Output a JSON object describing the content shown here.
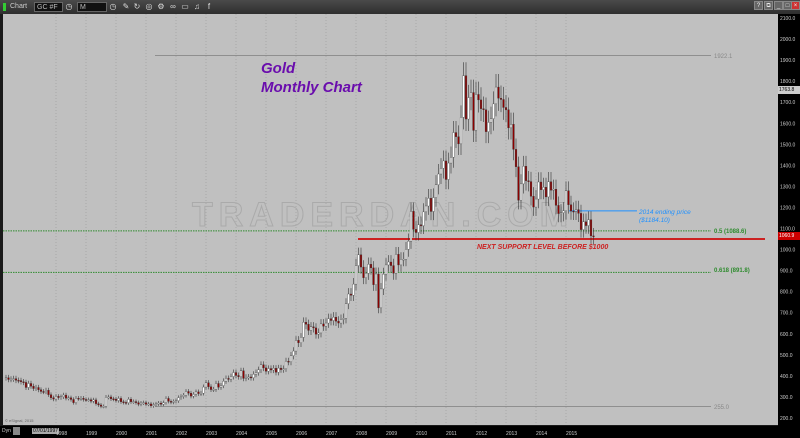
{
  "window": {
    "title": "Chart",
    "symbol": "GC #F",
    "interval": "M",
    "toolbar_icons": [
      "clock-icon",
      "pencil-icon",
      "refresh-icon",
      "target-icon",
      "settings-icon",
      "link-icon",
      "comment-icon",
      "twitter-icon",
      "facebook-icon"
    ],
    "window_controls": [
      "help-icon",
      "restore-icon",
      "minimize-icon",
      "maximize-icon",
      "close-icon"
    ]
  },
  "annotations": {
    "title_line1": "Gold",
    "title_line2": "Monthly Chart",
    "watermark": "TRADERDAN.COM",
    "high_level": "1922.1",
    "low_level": "255.0",
    "fib_50": "0.5 (1088.6)",
    "fib_618": "0.618 (891.8)",
    "ending_price_line1": "2014 ending price",
    "ending_price_line2": "($1184.10)",
    "support_text": "NEXT SUPPORT LEVEL BEFORE $1000",
    "last_price": "1060.9",
    "cursor_price": "1763.8",
    "copyright": "© eSignal, 2015",
    "dyn_label": "Dyn",
    "cursor_date": "07/01/1997"
  },
  "colors": {
    "background": "#c0c0c0",
    "down_candle": "#8b0000",
    "up_candle": "#ffffff",
    "fib_lines": "#2e8b2e",
    "support_line": "#cc2222",
    "ending_price_line": "#1e90ff",
    "title_text": "#6a0dad"
  },
  "chart_data": {
    "type": "candlestick",
    "title": "Gold Monthly Chart",
    "ylim": [
      200,
      2100
    ],
    "yticks": [
      "2100.0",
      "2000.0",
      "1900.0",
      "1800.0",
      "1700.0",
      "1600.0",
      "1500.0",
      "1400.0",
      "1300.0",
      "1200.0",
      "1100.0",
      "1000.0",
      "900.0",
      "800.0",
      "700.0",
      "600.0",
      "500.0",
      "400.0",
      "300.0",
      "200.0"
    ],
    "xticks": [
      "1998",
      "1999",
      "2000",
      "2001",
      "2002",
      "2003",
      "2004",
      "2005",
      "2006",
      "2007",
      "2008",
      "2009",
      "2010",
      "2011",
      "2012",
      "2013",
      "2014",
      "2015"
    ],
    "start": "1996-05",
    "monthly_close": [
      391,
      383,
      385,
      387,
      379,
      378,
      372,
      369,
      345,
      364,
      351,
      340,
      345,
      334,
      326,
      325,
      332,
      311,
      296,
      290,
      303,
      297,
      301,
      309,
      294,
      296,
      288,
      273,
      294,
      292,
      294,
      288,
      287,
      287,
      280,
      286,
      268,
      262,
      255,
      255,
      299,
      300,
      291,
      290,
      283,
      293,
      277,
      274,
      272,
      289,
      277,
      278,
      273,
      265,
      271,
      273,
      265,
      267,
      258,
      264,
      267,
      271,
      265,
      273,
      293,
      279,
      275,
      279,
      282,
      297,
      302,
      308,
      326,
      318,
      304,
      312,
      324,
      316,
      318,
      347,
      367,
      348,
      335,
      336,
      364,
      346,
      354,
      375,
      388,
      384,
      397,
      416,
      402,
      396,
      424,
      388,
      394,
      395,
      391,
      408,
      416,
      429,
      453,
      438,
      422,
      435,
      428,
      436,
      417,
      437,
      430,
      434,
      470,
      467,
      496,
      518,
      569,
      557,
      583,
      655,
      645,
      616,
      633,
      628,
      598,
      604,
      647,
      636,
      651,
      672,
      663,
      679,
      660,
      651,
      668,
      673,
      743,
      789,
      783,
      836,
      924,
      975,
      917,
      866,
      887,
      930,
      913,
      833,
      884,
      723,
      813,
      883,
      927,
      941,
      924,
      888,
      978,
      927,
      954,
      954,
      1001,
      1040,
      1182,
      1096,
      1081,
      1118,
      1113,
      1179,
      1207,
      1244,
      1181,
      1247,
      1308,
      1359,
      1386,
      1421,
      1333,
      1411,
      1439,
      1556,
      1536,
      1502,
      1628,
      1826,
      1620,
      1722,
      1746,
      1566,
      1737,
      1711,
      1669,
      1664,
      1560,
      1604,
      1622,
      1692,
      1772,
      1719,
      1713,
      1675,
      1664,
      1578,
      1595,
      1476,
      1393,
      1234,
      1312,
      1396,
      1327,
      1323,
      1253,
      1202,
      1240,
      1321,
      1284,
      1296,
      1250,
      1322,
      1282,
      1287,
      1210,
      1171,
      1175,
      1184,
      1279,
      1213,
      1183,
      1182,
      1190,
      1172,
      1095,
      1132,
      1114,
      1142,
      1065,
      1060
    ],
    "levels": {
      "high": 1922.1,
      "low": 255.0,
      "fib_50": 1088.6,
      "fib_618": 891.8,
      "support": 1050,
      "ending_2014": 1184.1
    }
  }
}
